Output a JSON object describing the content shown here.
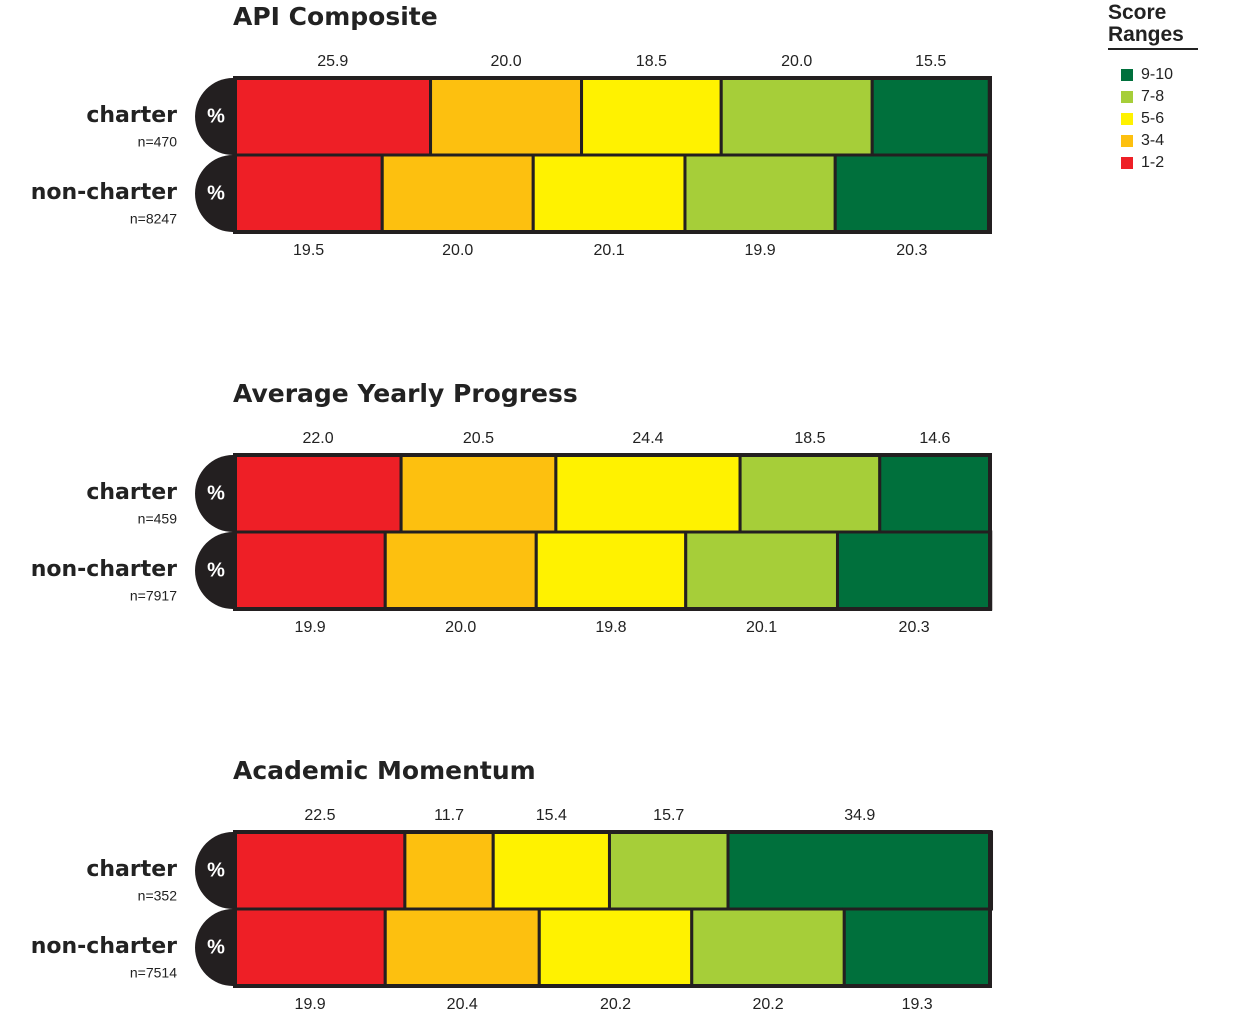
{
  "chart_data": [
    {
      "type": "bar",
      "title": "API Composite",
      "unit_label": "%",
      "categories": [
        "charter",
        "non-charter"
      ],
      "n_labels": [
        "n=470",
        "n=8247"
      ],
      "xlim": [
        0,
        100
      ],
      "legend_title": "Score Ranges",
      "series": [
        {
          "name": "1-2",
          "color": "#ee1f26",
          "values": [
            25.9,
            19.5
          ],
          "value_labels": [
            "25.9",
            "19.5"
          ]
        },
        {
          "name": "3-4",
          "color": "#fdc00f",
          "values": [
            20.0,
            20.0
          ],
          "value_labels": [
            "20.0",
            "20.0"
          ]
        },
        {
          "name": "5-6",
          "color": "#fff200",
          "values": [
            18.5,
            20.1
          ],
          "value_labels": [
            "18.5",
            "20.1"
          ]
        },
        {
          "name": "7-8",
          "color": "#a6ce39",
          "values": [
            20.0,
            19.9
          ],
          "value_labels": [
            "20.0",
            "19.9"
          ]
        },
        {
          "name": "9-10",
          "color": "#00703c",
          "values": [
            15.5,
            20.3
          ],
          "value_labels": [
            "15.5",
            "20.3"
          ]
        }
      ]
    },
    {
      "type": "bar",
      "title": "Average Yearly Progress",
      "unit_label": "%",
      "categories": [
        "charter",
        "non-charter"
      ],
      "n_labels": [
        "n=459",
        "n=7917"
      ],
      "xlim": [
        0,
        100
      ],
      "series": [
        {
          "color": "#ee1f26",
          "values": [
            22.0,
            19.9
          ],
          "value_labels": [
            "22.0",
            "19.9"
          ]
        },
        {
          "color": "#fdc00f",
          "values": [
            20.5,
            20.0
          ],
          "value_labels": [
            "20.5",
            "20.0"
          ]
        },
        {
          "color": "#fff200",
          "values": [
            24.4,
            19.8
          ],
          "value_labels": [
            "24.4",
            "19.8"
          ]
        },
        {
          "color": "#a6ce39",
          "values": [
            18.5,
            20.1
          ],
          "value_labels": [
            "18.5",
            "20.1"
          ]
        },
        {
          "color": "#00703c",
          "values": [
            14.6,
            20.3
          ],
          "value_labels": [
            "14.6",
            "20.3"
          ]
        }
      ]
    },
    {
      "type": "bar",
      "title": "Academic Momentum",
      "unit_label": "%",
      "categories": [
        "charter",
        "non-charter"
      ],
      "n_labels": [
        "n=352",
        "n=7514"
      ],
      "xlim": [
        0,
        100
      ],
      "series": [
        {
          "color": "#ee1f26",
          "values": [
            22.5,
            19.9
          ],
          "value_labels": [
            "22.5",
            "19.9"
          ]
        },
        {
          "color": "#fdc00f",
          "values": [
            11.7,
            20.4
          ],
          "value_labels": [
            "11.7",
            "20.4"
          ]
        },
        {
          "color": "#fff200",
          "values": [
            15.4,
            20.2
          ],
          "value_labels": [
            "15.4",
            "20.2"
          ]
        },
        {
          "color": "#a6ce39",
          "values": [
            15.7,
            20.2
          ],
          "value_labels": [
            "15.7",
            "20.2"
          ]
        },
        {
          "color": "#00703c",
          "values": [
            34.9,
            19.3
          ],
          "value_labels": [
            "34.9",
            "19.3"
          ]
        }
      ]
    }
  ]
}
